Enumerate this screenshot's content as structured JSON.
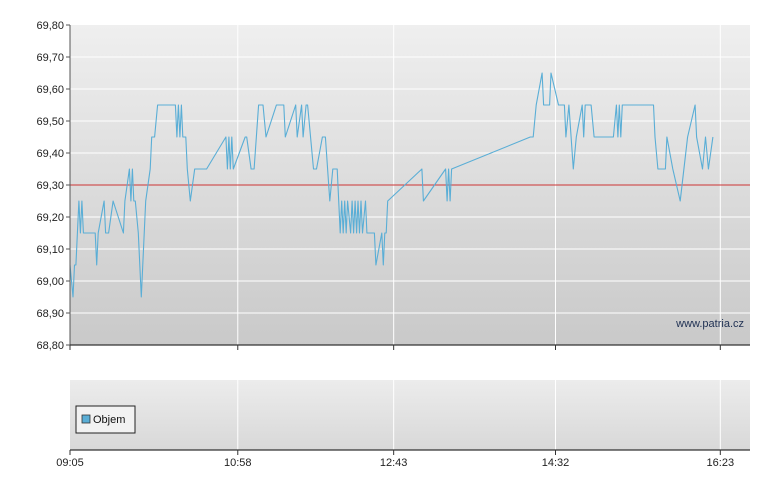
{
  "chart_data": [
    {
      "type": "line",
      "title": "",
      "xlabel": "",
      "ylabel": "",
      "ylim": [
        68.8,
        69.8
      ],
      "y_ticks": [
        "69,80",
        "69,70",
        "69,60",
        "69,50",
        "69,40",
        "69,30",
        "69,20",
        "69,10",
        "69,00",
        "68,90",
        "68,80"
      ],
      "x_range_minutes": [
        545,
        1003
      ],
      "x_ticks": [
        {
          "label": "09:05",
          "minute": 545
        },
        {
          "label": "10:58",
          "minute": 658
        },
        {
          "label": "12:43",
          "minute": 763
        },
        {
          "label": "14:32",
          "minute": 872
        },
        {
          "label": "16:23",
          "minute": 983
        }
      ],
      "reference_line": {
        "value": 69.3,
        "color": "#cc3333"
      },
      "watermark": "www.patria.cz",
      "grid": true,
      "line_color": "#5aaed6",
      "series": [
        {
          "points": [
            [
              545,
              69.05
            ],
            [
              547,
              68.95
            ],
            [
              548,
              69.05
            ],
            [
              549,
              69.05
            ],
            [
              551,
              69.25
            ],
            [
              552,
              69.15
            ],
            [
              553,
              69.25
            ],
            [
              554,
              69.15
            ],
            [
              556,
              69.15
            ],
            [
              562,
              69.15
            ],
            [
              563,
              69.05
            ],
            [
              564,
              69.15
            ],
            [
              568,
              69.25
            ],
            [
              569,
              69.15
            ],
            [
              571,
              69.15
            ],
            [
              574,
              69.25
            ],
            [
              581,
              69.15
            ],
            [
              582,
              69.25
            ],
            [
              585,
              69.35
            ],
            [
              586,
              69.25
            ],
            [
              587,
              69.35
            ],
            [
              588,
              69.25
            ],
            [
              589,
              69.25
            ],
            [
              591,
              69.15
            ],
            [
              593,
              68.95
            ],
            [
              596,
              69.25
            ],
            [
              599,
              69.35
            ],
            [
              600,
              69.45
            ],
            [
              602,
              69.45
            ],
            [
              604,
              69.55
            ],
            [
              616,
              69.55
            ],
            [
              617,
              69.45
            ],
            [
              618,
              69.55
            ],
            [
              619,
              69.45
            ],
            [
              620,
              69.55
            ],
            [
              621,
              69.45
            ],
            [
              623,
              69.45
            ],
            [
              624,
              69.35
            ],
            [
              626,
              69.25
            ],
            [
              629,
              69.35
            ],
            [
              637,
              69.35
            ],
            [
              650,
              69.45
            ],
            [
              651,
              69.35
            ],
            [
              652,
              69.45
            ],
            [
              653,
              69.35
            ],
            [
              654,
              69.45
            ],
            [
              655,
              69.35
            ],
            [
              663,
              69.45
            ],
            [
              664,
              69.45
            ],
            [
              667,
              69.35
            ],
            [
              669,
              69.35
            ],
            [
              672,
              69.55
            ],
            [
              675,
              69.55
            ],
            [
              677,
              69.45
            ],
            [
              684,
              69.55
            ],
            [
              689,
              69.55
            ],
            [
              690,
              69.45
            ],
            [
              697,
              69.55
            ],
            [
              698,
              69.45
            ],
            [
              701,
              69.55
            ],
            [
              702,
              69.45
            ],
            [
              704,
              69.55
            ],
            [
              705,
              69.55
            ],
            [
              709,
              69.35
            ],
            [
              711,
              69.35
            ],
            [
              715,
              69.45
            ],
            [
              717,
              69.45
            ],
            [
              720,
              69.25
            ],
            [
              722,
              69.35
            ],
            [
              725,
              69.35
            ],
            [
              726,
              69.25
            ],
            [
              727,
              69.15
            ],
            [
              728,
              69.25
            ],
            [
              729,
              69.15
            ],
            [
              730,
              69.25
            ],
            [
              731,
              69.15
            ],
            [
              732,
              69.25
            ],
            [
              734,
              69.15
            ],
            [
              735,
              69.25
            ],
            [
              736,
              69.15
            ],
            [
              737,
              69.25
            ],
            [
              738,
              69.15
            ],
            [
              739,
              69.25
            ],
            [
              740,
              69.15
            ],
            [
              741,
              69.25
            ],
            [
              742,
              69.15
            ],
            [
              744,
              69.25
            ],
            [
              745,
              69.15
            ],
            [
              746,
              69.15
            ],
            [
              750,
              69.15
            ],
            [
              751,
              69.05
            ],
            [
              755,
              69.15
            ],
            [
              756,
              69.05
            ],
            [
              757,
              69.15
            ],
            [
              758,
              69.15
            ],
            [
              759,
              69.25
            ],
            [
              782,
              69.35
            ],
            [
              783,
              69.25
            ],
            [
              798,
              69.35
            ],
            [
              799,
              69.25
            ],
            [
              800,
              69.35
            ],
            [
              801,
              69.25
            ],
            [
              802,
              69.35
            ],
            [
              855,
              69.45
            ],
            [
              857,
              69.45
            ],
            [
              859,
              69.55
            ],
            [
              863,
              69.65
            ],
            [
              864,
              69.55
            ],
            [
              868,
              69.55
            ],
            [
              869,
              69.65
            ],
            [
              874,
              69.55
            ],
            [
              878,
              69.55
            ],
            [
              879,
              69.45
            ],
            [
              881,
              69.55
            ],
            [
              884,
              69.35
            ],
            [
              886,
              69.45
            ],
            [
              890,
              69.55
            ],
            [
              891,
              69.45
            ],
            [
              892,
              69.55
            ],
            [
              896,
              69.55
            ],
            [
              898,
              69.45
            ],
            [
              911,
              69.45
            ],
            [
              913,
              69.55
            ],
            [
              914,
              69.45
            ],
            [
              915,
              69.55
            ],
            [
              916,
              69.45
            ],
            [
              917,
              69.55
            ],
            [
              938,
              69.55
            ],
            [
              939,
              69.45
            ],
            [
              941,
              69.35
            ],
            [
              946,
              69.35
            ],
            [
              947,
              69.45
            ],
            [
              951,
              69.35
            ],
            [
              956,
              69.25
            ],
            [
              961,
              69.45
            ],
            [
              966,
              69.55
            ],
            [
              967,
              69.45
            ],
            [
              971,
              69.35
            ],
            [
              973,
              69.45
            ],
            [
              975,
              69.35
            ],
            [
              978,
              69.45
            ]
          ]
        }
      ]
    },
    {
      "type": "bar",
      "title": "",
      "legend": {
        "label": "Objem",
        "color": "#5aaed6",
        "position": "left"
      },
      "series": [
        {
          "name": "Objem",
          "values": []
        }
      ]
    }
  ]
}
